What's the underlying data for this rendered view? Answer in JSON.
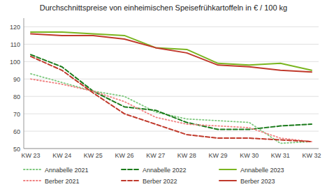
{
  "chart_data": {
    "type": "line",
    "title": "Durchschnittspreise von einheimischen Speisefrühkartoffeln in € / 100 kg",
    "categories": [
      "KW 23",
      "KW 24",
      "KW 25",
      "KW 26",
      "KW 27",
      "KW 28",
      "KW 29",
      "KW 30",
      "KW 31",
      "KW 32"
    ],
    "series": [
      {
        "name": "Annabelle 2021",
        "color": "#7dc87d",
        "line_style": "dotted",
        "values": [
          93,
          88,
          83,
          80,
          71,
          67,
          66,
          65,
          53,
          54
        ]
      },
      {
        "name": "Annabelle 2022",
        "color": "#1a7a1a",
        "line_style": "dashed",
        "values": [
          104,
          97,
          83,
          74,
          72,
          65,
          61,
          61,
          63,
          64
        ]
      },
      {
        "name": "Annabelle 2023",
        "color": "#7ab520",
        "line_style": "solid",
        "values": [
          117,
          117,
          116,
          115,
          108,
          107,
          99,
          98,
          99,
          95
        ]
      },
      {
        "name": "Berber 2021",
        "color": "#f08080",
        "line_style": "dotted",
        "values": [
          90,
          87,
          83,
          77,
          68,
          64,
          63,
          62,
          56,
          54
        ]
      },
      {
        "name": "Berber 2022",
        "color": "#c0392b",
        "line_style": "dashed",
        "values": [
          103,
          95,
          82,
          70,
          64,
          58,
          56,
          56,
          55,
          54
        ]
      },
      {
        "name": "Berber 2023",
        "color": "#c0392b",
        "line_style": "solid",
        "values": [
          116,
          115,
          115,
          113,
          108,
          105,
          98,
          97,
          95,
          94
        ]
      }
    ],
    "ylim": [
      50,
      125
    ],
    "yticks": [
      50,
      60,
      70,
      80,
      90,
      100,
      110,
      120
    ],
    "grid": true,
    "legend": "bottom"
  }
}
